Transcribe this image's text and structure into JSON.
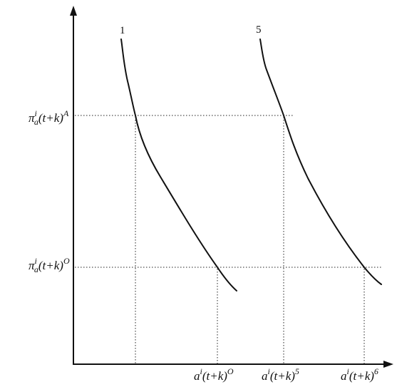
{
  "diagram": {
    "curves": [
      {
        "id": "curve-1",
        "label": "1"
      },
      {
        "id": "curve-5",
        "label": "5"
      }
    ],
    "y_labels": {
      "upper": {
        "base": "π",
        "sub": "a",
        "sup_i": "i",
        "arg": "(t+k)",
        "sup": "A"
      },
      "lower": {
        "base": "π",
        "sub": "a",
        "sup_i": "i",
        "arg": "(t+k)",
        "sup": "O"
      }
    },
    "x_labels": {
      "first": {
        "base": "a",
        "sup_i": "i",
        "arg": "(t+k)",
        "sup": "O"
      },
      "second": {
        "base": "a",
        "sup_i": "i",
        "arg": "(t+k)",
        "sup": "5"
      },
      "third": {
        "base": "a",
        "sup_i": "i",
        "arg": "(t+k)",
        "sup": "6"
      }
    },
    "colors": {
      "ink": "#111111",
      "background": "#ffffff"
    }
  }
}
